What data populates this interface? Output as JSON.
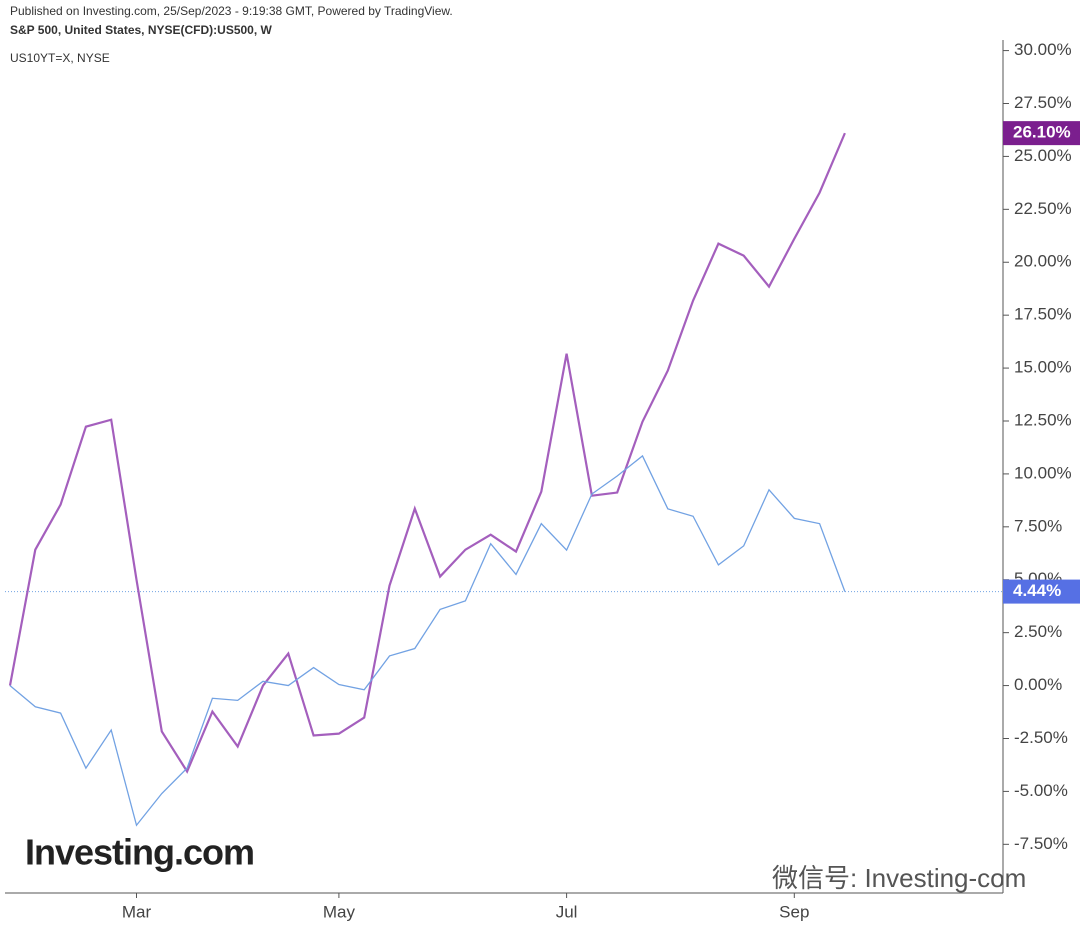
{
  "chart_data": {
    "type": "line",
    "title": "Published on Investing.com, 25/Sep/2023 - 9:19:38 GMT, Powered by TradingView.",
    "categories": [
      null,
      null,
      null,
      null,
      null,
      "Mar",
      null,
      null,
      null,
      null,
      null,
      null,
      null,
      "May",
      null,
      null,
      null,
      null,
      null,
      null,
      null,
      null,
      "Jul",
      null,
      null,
      null,
      null,
      null,
      null,
      null,
      null,
      "Sep",
      null,
      null
    ],
    "series": [
      {
        "name": "S&P 500, United States, NYSE(CFD):US500, W",
        "color": "#a45fbd",
        "label_color": "#7b1f8e",
        "values": [
          0,
          6.42,
          8.55,
          12.23,
          12.56,
          5.0,
          -2.17,
          -4.06,
          -1.23,
          -2.88,
          0,
          1.51,
          -2.36,
          -2.27,
          -1.51,
          4.72,
          8.36,
          5.15,
          6.42,
          7.13,
          6.33,
          9.16,
          15.68,
          8.97,
          9.12,
          12.47,
          14.88,
          18.19,
          20.88,
          20.31,
          18.85,
          21.11,
          23.29,
          26.1
        ],
        "value_labels": [
          null,
          null,
          null,
          null,
          null,
          null,
          null,
          null,
          null,
          null,
          null,
          null,
          null,
          null,
          null,
          null,
          null,
          null,
          null,
          null,
          null,
          null,
          null,
          null,
          null,
          null,
          null,
          null,
          null,
          null,
          null,
          null,
          null,
          "26.10%"
        ]
      },
      {
        "name": "US10YT=X, NYSE",
        "color": "#72a2e3",
        "label_color": "#5670e4",
        "values": [
          0,
          -1.0,
          -1.3,
          -3.9,
          -2.1,
          -6.6,
          -5.1,
          -3.9,
          -0.6,
          -0.7,
          0.2,
          0,
          0.85,
          0.05,
          -0.2,
          1.4,
          1.75,
          3.6,
          4.0,
          6.7,
          5.25,
          7.65,
          6.4,
          9.05,
          9.9,
          10.85,
          8.35,
          8.0,
          5.7,
          6.6,
          9.25,
          7.9,
          7.65,
          4.44
        ],
        "value_labels": [
          null,
          null,
          null,
          null,
          null,
          null,
          null,
          null,
          null,
          null,
          null,
          null,
          null,
          null,
          null,
          null,
          null,
          null,
          null,
          null,
          null,
          null,
          null,
          null,
          null,
          null,
          null,
          null,
          null,
          null,
          null,
          null,
          null,
          "4.44%"
        ]
      }
    ],
    "ylim": [
      -9.8,
      30.5
    ],
    "yticks": [
      {
        "value": -7.5,
        "label": "-7.50%"
      },
      {
        "value": -5,
        "label": "-5.00%"
      },
      {
        "value": -2.5,
        "label": "-2.50%"
      },
      {
        "value": 0,
        "label": "0.00%"
      },
      {
        "value": 2.5,
        "label": "2.50%"
      },
      {
        "value": 5,
        "label": "5.00%"
      },
      {
        "value": 7.5,
        "label": "7.50%"
      },
      {
        "value": 10,
        "label": "10.00%"
      },
      {
        "value": 12.5,
        "label": "12.50%"
      },
      {
        "value": 15,
        "label": "15.00%"
      },
      {
        "value": 17.5,
        "label": "17.50%"
      },
      {
        "value": 20,
        "label": "20.00%"
      },
      {
        "value": 22.5,
        "label": "22.50%"
      },
      {
        "value": 25,
        "label": "25.00%"
      },
      {
        "value": 27.5,
        "label": "27.50%"
      },
      {
        "value": 30,
        "label": "30.00%"
      }
    ],
    "grid": false,
    "price_line_series": 1,
    "watermarks": [
      "Investing.com",
      "微信号: Investing-com"
    ]
  }
}
